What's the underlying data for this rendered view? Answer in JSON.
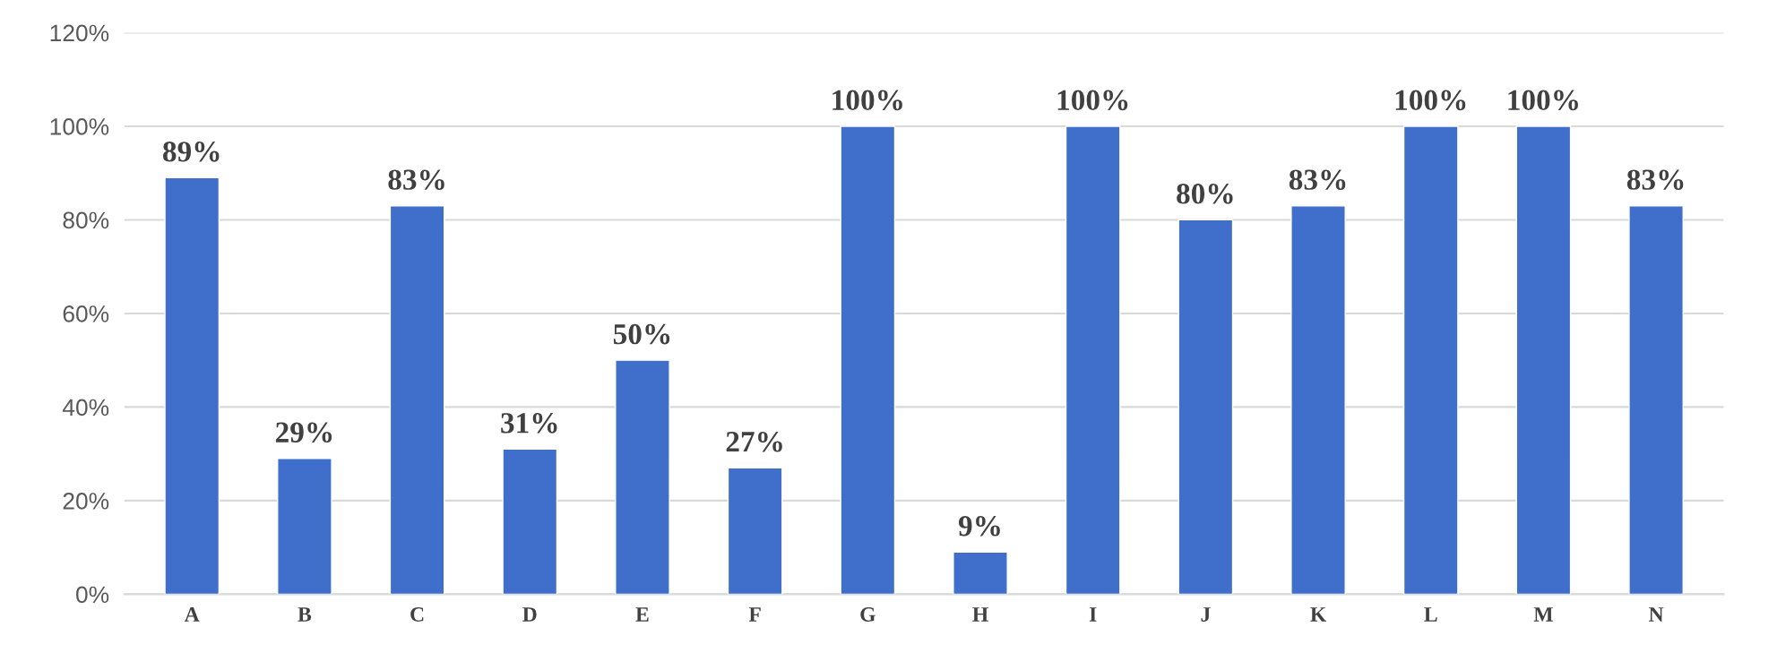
{
  "chart_data": {
    "type": "bar",
    "categories": [
      "A",
      "B",
      "C",
      "D",
      "E",
      "F",
      "G",
      "H",
      "I",
      "J",
      "K",
      "L",
      "M",
      "N"
    ],
    "values": [
      89,
      29,
      83,
      31,
      50,
      27,
      100,
      9,
      100,
      80,
      83,
      100,
      100,
      83
    ],
    "value_labels": [
      "89%",
      "29%",
      "83%",
      "31%",
      "50%",
      "27%",
      "100%",
      "9%",
      "100%",
      "80%",
      "83%",
      "100%",
      "100%",
      "83%"
    ],
    "color": "#3f6fcb",
    "ylim": [
      0,
      120
    ],
    "yticks": [
      {
        "value": 0,
        "label": "0%"
      },
      {
        "value": 20,
        "label": "20%"
      },
      {
        "value": 40,
        "label": "40%"
      },
      {
        "value": 60,
        "label": "60%"
      },
      {
        "value": 80,
        "label": "80%"
      },
      {
        "value": 100,
        "label": "100%"
      },
      {
        "value": 120,
        "label": "120%"
      }
    ],
    "grid": "y"
  }
}
